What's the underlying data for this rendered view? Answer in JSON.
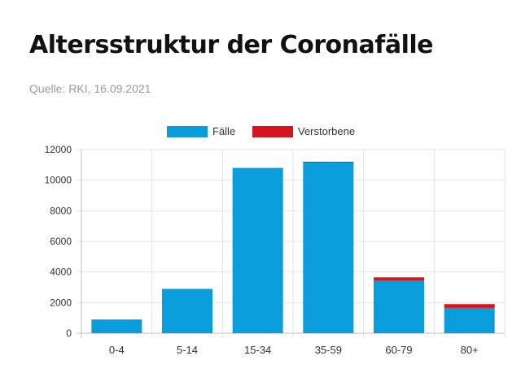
{
  "header": {
    "title": "Altersstruktur der Coronafälle",
    "source": "Quelle: RKI, 16.09.2021"
  },
  "colors": {
    "faelle": "#0a9ddc",
    "verstorbene": "#d7141e",
    "grid": "#e3e3e3",
    "axis_text": "#333333"
  },
  "chart_data": {
    "type": "bar",
    "stacked": true,
    "categories": [
      "0-4",
      "5-14",
      "15-34",
      "35-59",
      "60-79",
      "80+"
    ],
    "series": [
      {
        "name": "Fälle",
        "values": [
          900,
          2900,
          10800,
          11150,
          3450,
          1650
        ]
      },
      {
        "name": "Verstorbene",
        "values": [
          0,
          0,
          0,
          50,
          200,
          250
        ]
      }
    ],
    "ylim": [
      0,
      12000
    ],
    "yticks": [
      0,
      2000,
      4000,
      6000,
      8000,
      10000,
      12000
    ],
    "legend": "top",
    "grid": true
  }
}
